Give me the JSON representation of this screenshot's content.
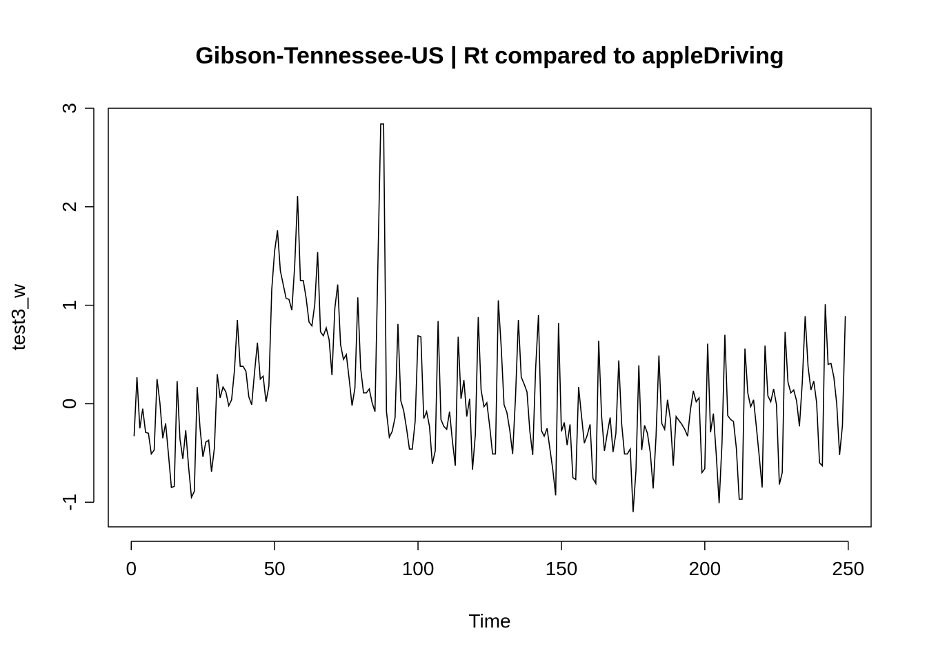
{
  "chart_data": {
    "type": "line",
    "title": "Gibson-Tennessee-US | Rt compared to appleDriving",
    "xlabel": "Time",
    "ylabel": "test3_w",
    "xlim": [
      -8,
      258
    ],
    "ylim": [
      -1.25,
      3.0
    ],
    "xticks": [
      0,
      50,
      100,
      150,
      200,
      250
    ],
    "yticks": [
      -1,
      0,
      1,
      2,
      3
    ],
    "grid": false,
    "series": [
      {
        "values": [
          -0.33,
          0.27,
          -0.25,
          -0.05,
          -0.29,
          -0.3,
          -0.51,
          -0.47,
          0.25,
          0.01,
          -0.35,
          -0.2,
          -0.52,
          -0.85,
          -0.84,
          0.23,
          -0.36,
          -0.56,
          -0.27,
          -0.64,
          -0.95,
          -0.89,
          0.17,
          -0.25,
          -0.54,
          -0.39,
          -0.37,
          -0.69,
          -0.45,
          0.3,
          0.06,
          0.17,
          0.12,
          -0.02,
          0.04,
          0.34,
          0.85,
          0.38,
          0.38,
          0.33,
          0.07,
          -0.01,
          0.32,
          0.62,
          0.25,
          0.28,
          0.02,
          0.18,
          1.16,
          1.55,
          1.76,
          1.35,
          1.21,
          1.07,
          1.06,
          0.95,
          1.4,
          2.11,
          1.25,
          1.25,
          1.07,
          0.83,
          0.79,
          1.01,
          1.54,
          0.73,
          0.69,
          0.77,
          0.65,
          0.29,
          0.97,
          1.21,
          0.6,
          0.45,
          0.5,
          0.25,
          -0.02,
          0.16,
          1.08,
          0.36,
          0.11,
          0.11,
          0.15,
          0.01,
          -0.08,
          1.4,
          2.84,
          2.84,
          -0.08,
          -0.34,
          -0.28,
          -0.14,
          0.81,
          0.03,
          -0.07,
          -0.25,
          -0.46,
          -0.46,
          -0.18,
          0.69,
          0.68,
          -0.15,
          -0.08,
          -0.23,
          -0.61,
          -0.48,
          0.84,
          -0.16,
          -0.23,
          -0.26,
          -0.08,
          -0.38,
          -0.63,
          0.68,
          0.05,
          0.24,
          -0.13,
          0.05,
          -0.67,
          -0.31,
          0.88,
          0.14,
          -0.03,
          0.01,
          -0.23,
          -0.51,
          -0.51,
          1.05,
          0.58,
          -0.01,
          -0.09,
          -0.27,
          -0.51,
          0.07,
          0.85,
          0.27,
          0.2,
          0.12,
          -0.28,
          -0.52,
          0.35,
          0.9,
          -0.27,
          -0.33,
          -0.25,
          -0.46,
          -0.67,
          -0.93,
          0.82,
          -0.28,
          -0.19,
          -0.42,
          -0.21,
          -0.75,
          -0.77,
          0.17,
          -0.12,
          -0.4,
          -0.32,
          -0.21,
          -0.76,
          -0.81,
          0.64,
          -0.12,
          -0.48,
          -0.3,
          -0.14,
          -0.49,
          -0.3,
          0.44,
          -0.2,
          -0.51,
          -0.51,
          -0.46,
          -1.1,
          -0.68,
          0.39,
          -0.47,
          -0.22,
          -0.3,
          -0.5,
          -0.86,
          -0.33,
          0.49,
          -0.2,
          -0.26,
          0.04,
          -0.16,
          -0.63,
          -0.13,
          -0.17,
          -0.21,
          -0.26,
          -0.33,
          -0.06,
          0.13,
          0.02,
          0.06,
          -0.7,
          -0.66,
          0.61,
          -0.29,
          -0.1,
          -0.52,
          -1.01,
          -0.4,
          0.7,
          -0.12,
          -0.16,
          -0.18,
          -0.45,
          -0.97,
          -0.97,
          0.56,
          0.11,
          -0.03,
          0.04,
          -0.24,
          -0.54,
          -0.85,
          0.59,
          0.08,
          0.02,
          0.15,
          -0.01,
          -0.82,
          -0.7,
          0.73,
          0.22,
          0.11,
          0.14,
          0.03,
          -0.23,
          0.22,
          0.89,
          0.38,
          0.14,
          0.23,
          0.01,
          -0.6,
          -0.63,
          1.01,
          0.4,
          0.41,
          0.27,
          0.0,
          -0.52,
          -0.22,
          0.89
        ]
      }
    ]
  }
}
